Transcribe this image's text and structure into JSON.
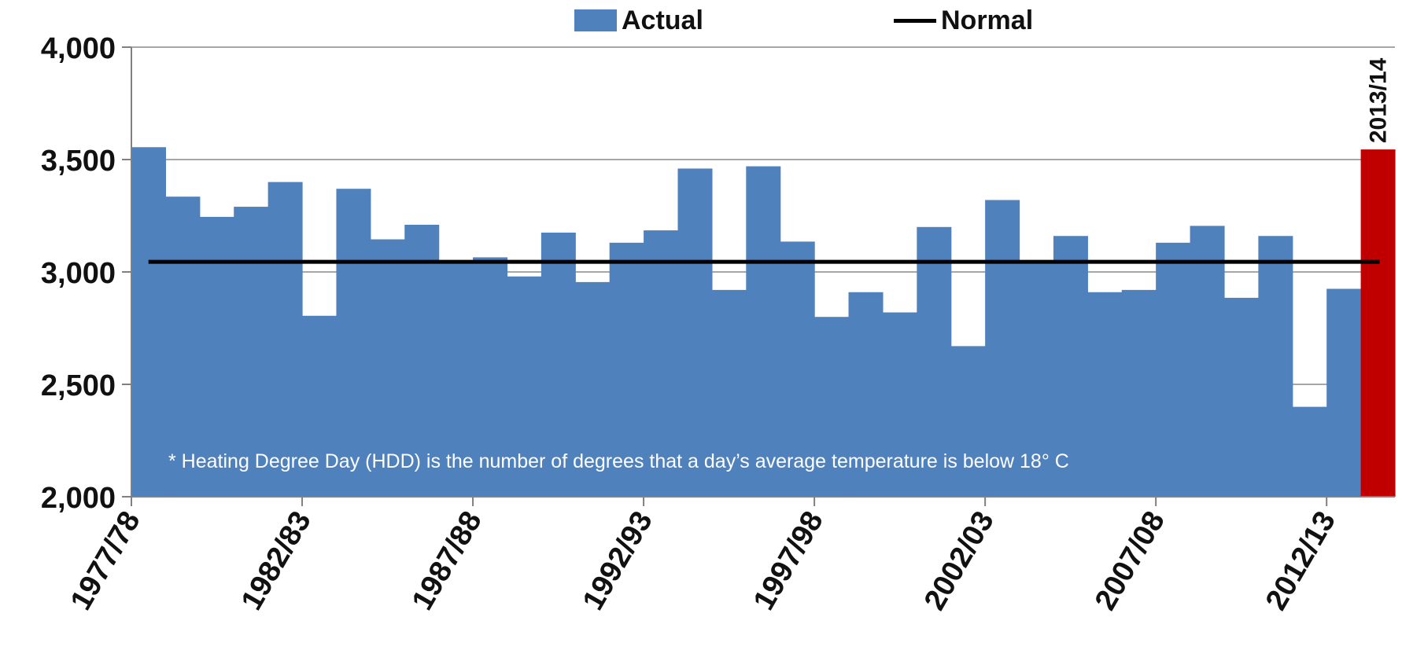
{
  "legend": {
    "actual_label": "Actual",
    "normal_label": "Normal"
  },
  "chart_data": {
    "type": "bar",
    "title": "",
    "xlabel": "",
    "ylabel": "",
    "ylim": [
      2000,
      4000
    ],
    "yticks": [
      2000,
      2500,
      3000,
      3500,
      4000
    ],
    "ytick_labels": [
      "2,000",
      "2,500",
      "3,000",
      "3,500",
      "4,000"
    ],
    "grid": "horizontal",
    "legend_position": "top-center",
    "colors": {
      "actual": "#4f81bd",
      "highlight": "#c00000",
      "normal": "#000000"
    },
    "categories": [
      "1977/78",
      "1978/79",
      "1979/80",
      "1980/81",
      "1981/82",
      "1982/83",
      "1983/84",
      "1984/85",
      "1985/86",
      "1986/87",
      "1987/88",
      "1988/89",
      "1989/90",
      "1990/91",
      "1991/92",
      "1992/93",
      "1993/94",
      "1994/95",
      "1995/96",
      "1996/97",
      "1997/98",
      "1998/99",
      "1999/00",
      "2000/01",
      "2001/02",
      "2002/03",
      "2003/04",
      "2004/05",
      "2005/06",
      "2006/07",
      "2007/08",
      "2008/09",
      "2009/10",
      "2010/11",
      "2011/12",
      "2012/13",
      "2013/14"
    ],
    "x_tick_labels": [
      "1977/78",
      "1982/83",
      "1987/88",
      "1992/93",
      "1997/98",
      "2002/03",
      "2007/08",
      "2012/13"
    ],
    "series": [
      {
        "name": "Actual",
        "values": [
          3555,
          3335,
          3245,
          3290,
          3400,
          2805,
          3370,
          3145,
          3210,
          3045,
          3065,
          2980,
          3175,
          2955,
          3130,
          3185,
          3460,
          2920,
          3470,
          3135,
          2800,
          2910,
          2820,
          3200,
          2670,
          3320,
          3045,
          3160,
          2910,
          2920,
          3130,
          3205,
          2885,
          3160,
          2400,
          2925,
          3545
        ]
      },
      {
        "name": "Normal",
        "value": 3045
      }
    ],
    "highlight": {
      "category": "2013/14",
      "label": "2013/14"
    },
    "annotation": "* Heating Degree Day (HDD) is  the number of degrees that a day’s average temperature is below 18° C"
  }
}
